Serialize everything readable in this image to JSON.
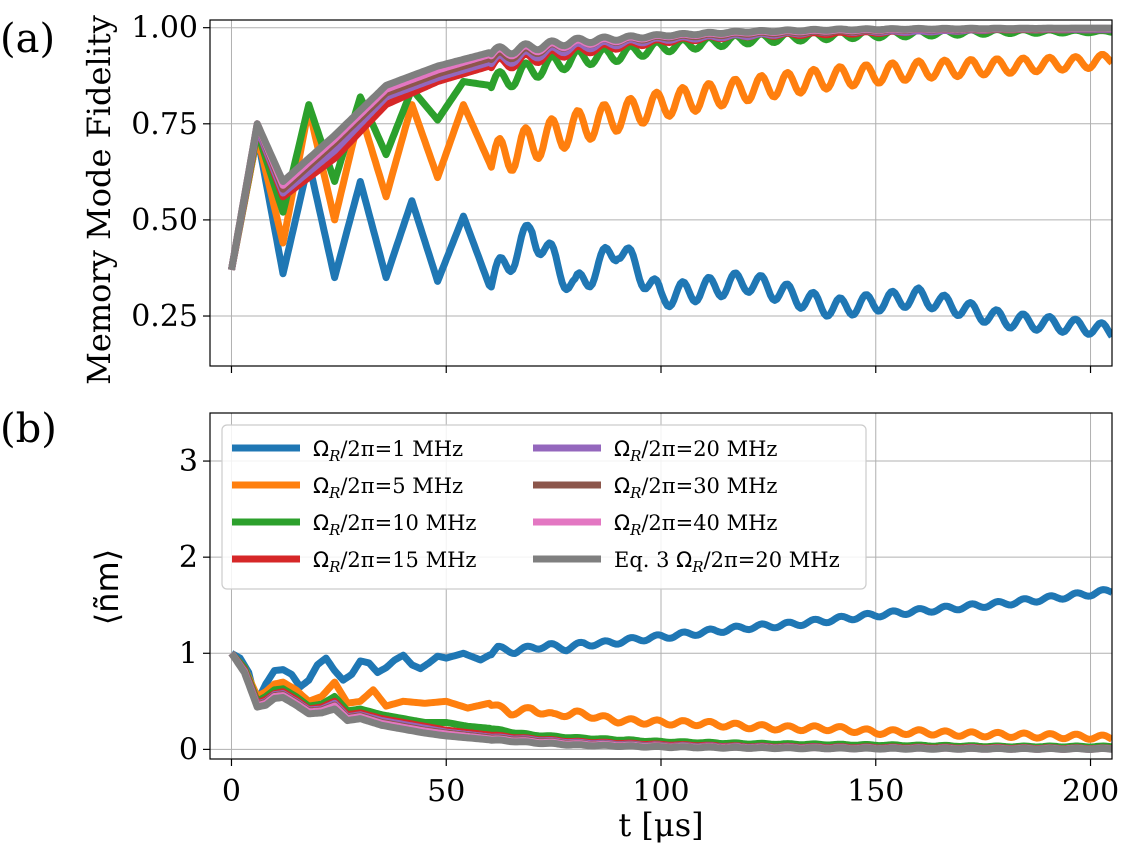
{
  "chart_data": [
    {
      "type": "line",
      "panel_label": "(a)",
      "ylabel": "Memory Mode Fidelity",
      "xlabel": "",
      "xlim": [
        -5,
        205
      ],
      "ylim": [
        0.12,
        1.02
      ],
      "xticks": [
        0,
        50,
        100,
        150,
        200
      ],
      "yticks": [
        0.25,
        0.5,
        0.75,
        1.0
      ],
      "ytick_labels": [
        "0.25",
        "0.50",
        "0.75",
        "1.00"
      ],
      "grid": true,
      "model": {
        "t": [
          0,
          5,
          7,
          10,
          12,
          15,
          18,
          20,
          24,
          25,
          30,
          35,
          40,
          42,
          45,
          48,
          50,
          55,
          60,
          65,
          70,
          75,
          80,
          90,
          100,
          110,
          120,
          130,
          140,
          150,
          160,
          170,
          180,
          190,
          200,
          205
        ],
        "oscillation_period_us": 6.1
      },
      "series": [
        {
          "name": "ΩR/2π=1 MHz",
          "color": "#1f77b4",
          "oscillation_amplitude": [
            0.18,
            0.08,
            0.06,
            0.035
          ],
          "t": [
            0,
            6,
            12,
            18,
            24,
            30,
            36,
            42,
            48,
            54,
            60,
            70,
            80,
            90,
            100,
            120,
            140,
            160,
            180,
            200,
            205
          ],
          "values": [
            0.37,
            0.72,
            0.36,
            0.65,
            0.35,
            0.6,
            0.35,
            0.55,
            0.34,
            0.51,
            0.33,
            0.47,
            0.32,
            0.43,
            0.3,
            0.34,
            0.27,
            0.3,
            0.24,
            0.22,
            0.21
          ]
        },
        {
          "name": "ΩR/2π=5 MHz",
          "color": "#ff7f0e",
          "oscillation_amplitude": [
            0.16,
            0.11,
            0.07,
            0.03
          ],
          "t": [
            0,
            6,
            12,
            18,
            24,
            30,
            36,
            42,
            48,
            54,
            60,
            70,
            80,
            90,
            100,
            120,
            140,
            160,
            180,
            200,
            205
          ],
          "values": [
            0.37,
            0.72,
            0.44,
            0.79,
            0.5,
            0.78,
            0.56,
            0.8,
            0.61,
            0.8,
            0.65,
            0.7,
            0.74,
            0.77,
            0.8,
            0.84,
            0.87,
            0.89,
            0.9,
            0.91,
            0.92
          ]
        },
        {
          "name": "ΩR/2π=10 MHz",
          "color": "#2ca02c",
          "oscillation_amplitude": [
            0.12,
            0.06,
            0.03,
            0.005
          ],
          "t": [
            0,
            6,
            12,
            18,
            24,
            30,
            36,
            42,
            48,
            54,
            60,
            70,
            80,
            90,
            100,
            120,
            140,
            160,
            180,
            200,
            205
          ],
          "values": [
            0.37,
            0.73,
            0.52,
            0.8,
            0.6,
            0.82,
            0.67,
            0.84,
            0.76,
            0.86,
            0.85,
            0.89,
            0.92,
            0.93,
            0.95,
            0.97,
            0.98,
            0.985,
            0.99,
            0.99,
            0.99
          ]
        },
        {
          "name": "ΩR/2π=15 MHz",
          "color": "#d62728",
          "oscillation_amplitude": [
            0.1,
            0.04,
            0.01,
            0.0
          ],
          "t": [
            0,
            6,
            12,
            24,
            36,
            48,
            60,
            80,
            100,
            120,
            140,
            160,
            180,
            200,
            205
          ],
          "values": [
            0.37,
            0.74,
            0.56,
            0.66,
            0.8,
            0.86,
            0.9,
            0.94,
            0.965,
            0.98,
            0.985,
            0.99,
            0.995,
            0.995,
            0.995
          ]
        },
        {
          "name": "ΩR/2π=20 MHz",
          "color": "#9467bd",
          "oscillation_amplitude": [
            0.1,
            0.035,
            0.008,
            0.0
          ],
          "t": [
            0,
            6,
            12,
            24,
            36,
            48,
            60,
            80,
            100,
            120,
            140,
            160,
            180,
            200,
            205
          ],
          "values": [
            0.37,
            0.74,
            0.57,
            0.68,
            0.82,
            0.87,
            0.91,
            0.95,
            0.97,
            0.98,
            0.99,
            0.99,
            0.995,
            0.995,
            0.995
          ]
        },
        {
          "name": "ΩR/2π=30 MHz",
          "color": "#8c564b",
          "oscillation_amplitude": [
            0.1,
            0.03,
            0.006,
            0.0
          ],
          "t": [
            0,
            6,
            12,
            24,
            36,
            48,
            60,
            80,
            100,
            120,
            140,
            160,
            180,
            200,
            205
          ],
          "values": [
            0.37,
            0.75,
            0.58,
            0.7,
            0.83,
            0.88,
            0.92,
            0.96,
            0.975,
            0.985,
            0.99,
            0.995,
            0.995,
            0.997,
            0.997
          ]
        },
        {
          "name": "ΩR/2π=40 MHz",
          "color": "#e377c2",
          "oscillation_amplitude": [
            0.1,
            0.03,
            0.005,
            0.0
          ],
          "t": [
            0,
            6,
            12,
            24,
            36,
            48,
            60,
            80,
            100,
            120,
            140,
            160,
            180,
            200,
            205
          ],
          "values": [
            0.37,
            0.75,
            0.59,
            0.71,
            0.84,
            0.89,
            0.93,
            0.96,
            0.978,
            0.988,
            0.993,
            0.996,
            0.997,
            0.998,
            0.998
          ]
        },
        {
          "name": "Eq. 3 ΩR/2π=20 MHz",
          "color": "#7f7f7f",
          "oscillation_amplitude": [
            0.1,
            0.03,
            0.005,
            0.0
          ],
          "t": [
            0,
            6,
            12,
            24,
            36,
            48,
            60,
            80,
            100,
            120,
            140,
            160,
            180,
            200,
            205
          ],
          "values": [
            0.37,
            0.75,
            0.6,
            0.72,
            0.85,
            0.9,
            0.935,
            0.965,
            0.98,
            0.99,
            0.995,
            0.997,
            0.998,
            0.999,
            0.999
          ]
        }
      ]
    },
    {
      "type": "line",
      "panel_label": "(b)",
      "ylabel": "⟨ñm⟩",
      "xlabel": "t [μs]",
      "xlim": [
        -5,
        205
      ],
      "ylim": [
        -0.1,
        3.5
      ],
      "xticks": [
        0,
        50,
        100,
        150,
        200
      ],
      "xtick_labels": [
        "0",
        "50",
        "100",
        "150",
        "200"
      ],
      "yticks": [
        0,
        1,
        2,
        3
      ],
      "ytick_labels": [
        "0",
        "1",
        "2",
        "3"
      ],
      "grid": true,
      "legend_position": "upper-left, two columns",
      "series": [
        {
          "name": "ΩR/2π=1 MHz",
          "color": "#1f77b4",
          "t": [
            0,
            2,
            4,
            5,
            6,
            8,
            10,
            12,
            14,
            16,
            18,
            20,
            22,
            24,
            26,
            28,
            30,
            32,
            34,
            36,
            38,
            40,
            42,
            44,
            46,
            48,
            50,
            54,
            58,
            60,
            62,
            66,
            70,
            74,
            78,
            82,
            86,
            90,
            95,
            100,
            110,
            120,
            130,
            140,
            150,
            160,
            170,
            180,
            190,
            200,
            205
          ],
          "values": [
            1.0,
            0.95,
            0.8,
            0.62,
            0.5,
            0.68,
            0.82,
            0.83,
            0.78,
            0.65,
            0.72,
            0.88,
            0.95,
            0.82,
            0.72,
            0.78,
            0.92,
            0.9,
            0.8,
            0.85,
            0.93,
            0.98,
            0.88,
            0.84,
            0.9,
            0.97,
            0.95,
            1.0,
            0.93,
            0.98,
            1.05,
            1.02,
            1.06,
            1.08,
            1.05,
            1.1,
            1.1,
            1.12,
            1.15,
            1.17,
            1.22,
            1.27,
            1.3,
            1.35,
            1.4,
            1.44,
            1.48,
            1.52,
            1.57,
            1.62,
            1.65
          ]
        },
        {
          "name": "ΩR/2π=5 MHz",
          "color": "#ff7f0e",
          "t": [
            0,
            3,
            6,
            8,
            10,
            12,
            15,
            18,
            21,
            24,
            27,
            30,
            33,
            36,
            40,
            45,
            50,
            55,
            60,
            65,
            70,
            75,
            80,
            90,
            100,
            110,
            120,
            130,
            140,
            150,
            160,
            170,
            180,
            190,
            200,
            205
          ],
          "values": [
            1.0,
            0.85,
            0.55,
            0.6,
            0.68,
            0.7,
            0.62,
            0.5,
            0.55,
            0.7,
            0.48,
            0.5,
            0.62,
            0.45,
            0.5,
            0.48,
            0.5,
            0.43,
            0.48,
            0.38,
            0.42,
            0.35,
            0.38,
            0.3,
            0.28,
            0.27,
            0.24,
            0.22,
            0.22,
            0.18,
            0.18,
            0.16,
            0.15,
            0.14,
            0.13,
            0.12
          ]
        },
        {
          "name": "ΩR/2π=10 MHz",
          "color": "#2ca02c",
          "t": [
            0,
            3,
            6,
            8,
            10,
            12,
            15,
            18,
            21,
            24,
            27,
            30,
            35,
            40,
            45,
            50,
            55,
            60,
            65,
            70,
            80,
            90,
            100,
            120,
            140,
            160,
            180,
            200,
            205
          ],
          "values": [
            1.0,
            0.85,
            0.5,
            0.55,
            0.62,
            0.63,
            0.55,
            0.45,
            0.47,
            0.55,
            0.4,
            0.42,
            0.36,
            0.32,
            0.28,
            0.28,
            0.24,
            0.22,
            0.18,
            0.15,
            0.12,
            0.1,
            0.08,
            0.06,
            0.05,
            0.04,
            0.03,
            0.03,
            0.03
          ]
        },
        {
          "name": "ΩR/2π=15 MHz",
          "color": "#d62728",
          "t": [
            0,
            3,
            6,
            8,
            10,
            12,
            15,
            18,
            21,
            24,
            27,
            30,
            35,
            40,
            45,
            50,
            60,
            70,
            80,
            100,
            120,
            150,
            180,
            205
          ],
          "values": [
            1.0,
            0.83,
            0.48,
            0.52,
            0.58,
            0.6,
            0.52,
            0.42,
            0.44,
            0.5,
            0.36,
            0.38,
            0.32,
            0.28,
            0.24,
            0.2,
            0.15,
            0.11,
            0.08,
            0.05,
            0.03,
            0.02,
            0.015,
            0.01
          ]
        },
        {
          "name": "ΩR/2π=20 MHz",
          "color": "#9467bd",
          "t": [
            0,
            3,
            6,
            8,
            10,
            12,
            15,
            18,
            21,
            24,
            27,
            30,
            35,
            40,
            45,
            50,
            60,
            70,
            80,
            100,
            120,
            150,
            180,
            205
          ],
          "values": [
            1.0,
            0.82,
            0.47,
            0.5,
            0.57,
            0.58,
            0.5,
            0.41,
            0.42,
            0.48,
            0.34,
            0.36,
            0.3,
            0.26,
            0.22,
            0.18,
            0.13,
            0.1,
            0.07,
            0.04,
            0.025,
            0.015,
            0.01,
            0.008
          ]
        },
        {
          "name": "ΩR/2π=30 MHz",
          "color": "#8c564b",
          "t": [
            0,
            3,
            6,
            8,
            10,
            12,
            15,
            18,
            21,
            24,
            27,
            30,
            35,
            40,
            45,
            50,
            60,
            70,
            80,
            100,
            120,
            150,
            180,
            205
          ],
          "values": [
            1.0,
            0.82,
            0.46,
            0.49,
            0.56,
            0.57,
            0.49,
            0.4,
            0.41,
            0.46,
            0.33,
            0.35,
            0.28,
            0.24,
            0.2,
            0.17,
            0.12,
            0.09,
            0.06,
            0.035,
            0.02,
            0.012,
            0.008,
            0.006
          ]
        },
        {
          "name": "ΩR/2π=40 MHz",
          "color": "#e377c2",
          "t": [
            0,
            3,
            6,
            8,
            10,
            12,
            15,
            18,
            21,
            24,
            27,
            30,
            35,
            40,
            45,
            50,
            60,
            70,
            80,
            100,
            120,
            150,
            180,
            205
          ],
          "values": [
            1.0,
            0.81,
            0.45,
            0.48,
            0.55,
            0.56,
            0.48,
            0.39,
            0.4,
            0.45,
            0.32,
            0.34,
            0.27,
            0.23,
            0.19,
            0.16,
            0.11,
            0.08,
            0.055,
            0.03,
            0.018,
            0.01,
            0.007,
            0.005
          ]
        },
        {
          "name": "Eq. 3 ΩR/2π=20 MHz",
          "color": "#7f7f7f",
          "t": [
            0,
            3,
            6,
            8,
            10,
            12,
            15,
            18,
            21,
            24,
            27,
            30,
            35,
            40,
            45,
            50,
            60,
            70,
            80,
            100,
            120,
            150,
            180,
            205
          ],
          "values": [
            1.0,
            0.8,
            0.44,
            0.46,
            0.53,
            0.54,
            0.46,
            0.37,
            0.38,
            0.42,
            0.3,
            0.32,
            0.25,
            0.21,
            0.17,
            0.14,
            0.1,
            0.07,
            0.045,
            0.025,
            0.015,
            0.008,
            0.005,
            0.004
          ]
        }
      ],
      "legend": {
        "col1": [
          {
            "prefix": "",
            "omega": "Ω",
            "sub": "R",
            "rest": "/2π=1 MHz",
            "color": "#1f77b4"
          },
          {
            "prefix": "",
            "omega": "Ω",
            "sub": "R",
            "rest": "/2π=5 MHz",
            "color": "#ff7f0e"
          },
          {
            "prefix": "",
            "omega": "Ω",
            "sub": "R",
            "rest": "/2π=10 MHz",
            "color": "#2ca02c"
          },
          {
            "prefix": "",
            "omega": "Ω",
            "sub": "R",
            "rest": "/2π=15 MHz",
            "color": "#d62728"
          }
        ],
        "col2": [
          {
            "prefix": "",
            "omega": "Ω",
            "sub": "R",
            "rest": "/2π=20 MHz",
            "color": "#9467bd"
          },
          {
            "prefix": "",
            "omega": "Ω",
            "sub": "R",
            "rest": "/2π=30 MHz",
            "color": "#8c564b"
          },
          {
            "prefix": "",
            "omega": "Ω",
            "sub": "R",
            "rest": "/2π=40 MHz",
            "color": "#e377c2"
          },
          {
            "prefix": "Eq. 3 ",
            "omega": "Ω",
            "sub": "R",
            "rest": "/2π=20 MHz",
            "color": "#7f7f7f"
          }
        ]
      }
    }
  ]
}
